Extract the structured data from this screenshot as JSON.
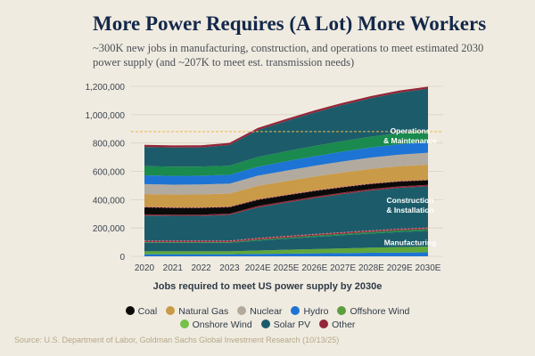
{
  "title": "More Power Requires (A Lot) More Workers",
  "subtitle": "~300K new jobs in manufacturing, construction, and operations to meet estimated 2030 power supply (and ~207K to meet est. transmission needs)",
  "source": "Source: U.S. Department of Labor, Goldman Sachs Global Investment Research (10/13/25)",
  "chart_data": {
    "type": "area",
    "stacked": true,
    "title": "More Power Requires (A Lot) More Workers",
    "xlabel": "Jobs required to meet US power supply by 2030e",
    "ylabel": "",
    "ylim": [
      0,
      1200000
    ],
    "yticks": [
      "0",
      "200,000",
      "400,000",
      "600,000",
      "800,000",
      "1,000,000",
      "1,200,000"
    ],
    "categories": [
      "2020",
      "2021",
      "2022",
      "2023",
      "2024E",
      "2025E",
      "2026E",
      "2027E",
      "2028E",
      "2029E",
      "2030E"
    ],
    "reference_line": 880000,
    "groups": [
      {
        "label": "Manufacturing",
        "series": [
          {
            "name": "Hydro",
            "values": [
              15000,
              15000,
              15000,
              15000,
              17000,
              19000,
              21000,
              23000,
              25000,
              27000,
              28000
            ]
          },
          {
            "name": "Onshore Wind",
            "values": [
              20000,
              20000,
              20000,
              20000,
              24000,
              27000,
              30000,
              33000,
              36000,
              38000,
              40000
            ]
          },
          {
            "name": "Solar PV",
            "values": [
              60000,
              60000,
              60000,
              60000,
              70000,
              78000,
              86000,
              93000,
              100000,
              106000,
              112000
            ]
          },
          {
            "name": "Offshore Wind",
            "values": [
              5000,
              5000,
              5000,
              5000,
              7000,
              8000,
              9000,
              10000,
              11000,
              12000,
              12000
            ]
          },
          {
            "name": "Other",
            "values": [
              8000,
              8000,
              8000,
              8000,
              9000,
              9000,
              9000,
              9000,
              9000,
              9000,
              8000
            ]
          }
        ]
      },
      {
        "label": "Construction & Installation",
        "series": [
          {
            "name": "Solar PV",
            "values": [
              180000,
              178000,
              178000,
              185000,
              218000,
              238000,
              256000,
              272000,
              284000,
              292000,
              294000
            ]
          },
          {
            "name": "Other",
            "values": [
              8000,
              8000,
              8000,
              8000,
              10000,
              10000,
              10000,
              10000,
              10000,
              10000,
              10000
            ]
          },
          {
            "name": "Coal",
            "values": [
              52000,
              50000,
              50000,
              48000,
              46000,
              44000,
              42000,
              40000,
              38000,
              36000,
              35000
            ]
          }
        ]
      },
      {
        "label": "Operations & Maintenance",
        "series": [
          {
            "name": "Natural Gas",
            "values": [
              92000,
              92000,
              93000,
              94000,
              96000,
              98000,
              100000,
              102000,
              104000,
              106000,
              108000
            ]
          },
          {
            "name": "Nuclear",
            "values": [
              70000,
              70000,
              70000,
              70000,
              72000,
              74000,
              76000,
              78000,
              80000,
              82000,
              84000
            ]
          },
          {
            "name": "Hydro",
            "values": [
              62000,
              62000,
              62000,
              62000,
              64000,
              66000,
              68000,
              70000,
              72000,
              74000,
              76000
            ]
          },
          {
            "name": "Offshore Wind",
            "values": [
              65000,
              65000,
              65000,
              65000,
              68000,
              70000,
              72000,
              74000,
              76000,
              78000,
              80000
            ]
          },
          {
            "name": "Solar PV",
            "values": [
              135000,
              135000,
              135000,
              146000,
              190000,
              214000,
              236000,
              255000,
              272000,
              286000,
              296000
            ]
          },
          {
            "name": "Other",
            "values": [
              15000,
              15000,
              15000,
              15000,
              15000,
              15000,
              15000,
              15000,
              15000,
              15000,
              15000
            ]
          }
        ]
      }
    ]
  },
  "legend": [
    {
      "name": "Coal",
      "color": "#0a0a0a"
    },
    {
      "name": "Natural Gas",
      "color": "#c99a48"
    },
    {
      "name": "Nuclear",
      "color": "#b2aa9f"
    },
    {
      "name": "Hydro",
      "color": "#1e74d4"
    },
    {
      "name": "Offshore Wind",
      "color": "#5f9d3e"
    },
    {
      "name": "Onshore Wind",
      "color": "#74c04b"
    },
    {
      "name": "Solar PV",
      "color": "#1c5c6a"
    },
    {
      "name": "Other",
      "color": "#932638"
    }
  ],
  "colors": {
    "Coal": "#0a0a0a",
    "Natural Gas": "#c99a48",
    "Nuclear": "#b2aa9f",
    "Hydro": "#1e74d4",
    "Offshore Wind": "#1a8a4e",
    "Onshore Wind": "#5fa83a",
    "Solar PV": "#1c5c6a",
    "Other": "#932638",
    "reference_line": "#e6b64a",
    "group_divider": "#e07a86"
  }
}
